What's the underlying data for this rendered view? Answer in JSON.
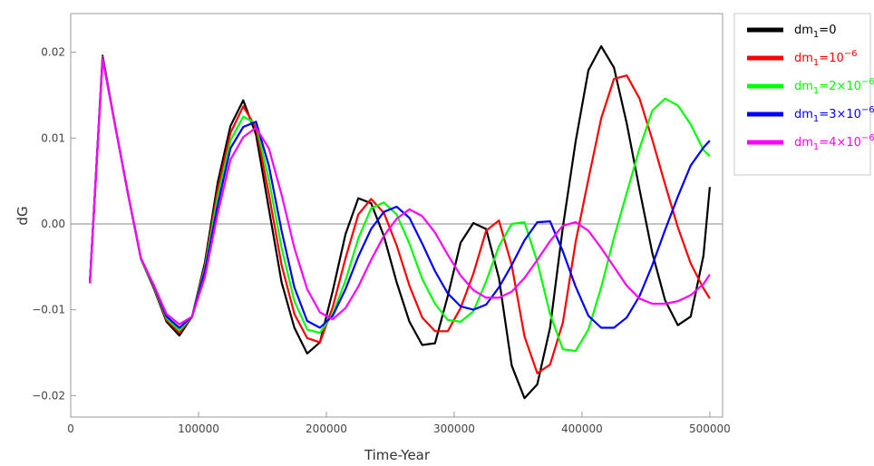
{
  "chart_data": {
    "type": "line",
    "xlabel": "Time-Year",
    "ylabel": "dG",
    "xlim": [
      0,
      510000
    ],
    "ylim": [
      -0.0225,
      0.0245
    ],
    "xticks": [
      0,
      100000,
      200000,
      300000,
      400000,
      500000
    ],
    "xtick_labels": [
      "0",
      "100000",
      "200000",
      "300000",
      "400000",
      "500000"
    ],
    "yticks": [
      -0.02,
      -0.01,
      0.0,
      0.01,
      0.02
    ],
    "ytick_labels": [
      "−0.02",
      "−0.01",
      "0.00",
      "0.01",
      "0.02"
    ],
    "reference_line_y": 0,
    "grid": false,
    "legend_position": "right",
    "series": [
      {
        "legend": {
          "base": "dm",
          "sub": "1",
          "rest": "=0",
          "sup": ""
        },
        "color": "#000000",
        "points": [
          [
            15000,
            -0.0069
          ],
          [
            25000,
            0.0196
          ],
          [
            35000,
            0.0113
          ],
          [
            45000,
            0.0034
          ],
          [
            55000,
            -0.0041
          ],
          [
            65000,
            -0.0075
          ],
          [
            75000,
            -0.0114
          ],
          [
            85000,
            -0.013
          ],
          [
            95000,
            -0.0108
          ],
          [
            105000,
            -0.0045
          ],
          [
            115000,
            0.0048
          ],
          [
            125000,
            0.0114
          ],
          [
            135000,
            0.0144
          ],
          [
            145000,
            0.0104
          ],
          [
            155000,
            0.0018
          ],
          [
            165000,
            -0.0068
          ],
          [
            175000,
            -0.0121
          ],
          [
            185000,
            -0.0151
          ],
          [
            195000,
            -0.0138
          ],
          [
            205000,
            -0.0078
          ],
          [
            215000,
            -0.0012
          ],
          [
            225000,
            0.003
          ],
          [
            235000,
            0.0024
          ],
          [
            245000,
            -0.0014
          ],
          [
            255000,
            -0.0068
          ],
          [
            265000,
            -0.0114
          ],
          [
            275000,
            -0.0141
          ],
          [
            285000,
            -0.0139
          ],
          [
            295000,
            -0.0084
          ],
          [
            305000,
            -0.0022
          ],
          [
            315000,
            0.0001
          ],
          [
            325000,
            -0.0006
          ],
          [
            335000,
            -0.0063
          ],
          [
            345000,
            -0.0165
          ],
          [
            355000,
            -0.0203
          ],
          [
            365000,
            -0.0187
          ],
          [
            375000,
            -0.0121
          ],
          [
            385000,
            -0.0004
          ],
          [
            395000,
            0.0096
          ],
          [
            405000,
            0.0179
          ],
          [
            415000,
            0.0207
          ],
          [
            425000,
            0.0182
          ],
          [
            435000,
            0.0117
          ],
          [
            445000,
            0.004
          ],
          [
            455000,
            -0.0034
          ],
          [
            465000,
            -0.0089
          ],
          [
            475000,
            -0.0118
          ],
          [
            485000,
            -0.0108
          ],
          [
            495000,
            -0.0037
          ],
          [
            500000,
            0.0043
          ]
        ]
      },
      {
        "legend": {
          "base": "dm",
          "sub": "1",
          "rest": "=10",
          "sup": "−6"
        },
        "color": "#ff0000",
        "points": [
          [
            15000,
            -0.0069
          ],
          [
            25000,
            0.0195
          ],
          [
            35000,
            0.0113
          ],
          [
            45000,
            0.0034
          ],
          [
            55000,
            -0.0041
          ],
          [
            65000,
            -0.0074
          ],
          [
            75000,
            -0.0112
          ],
          [
            85000,
            -0.0127
          ],
          [
            95000,
            -0.0108
          ],
          [
            105000,
            -0.0049
          ],
          [
            115000,
            0.004
          ],
          [
            125000,
            0.0106
          ],
          [
            135000,
            0.0137
          ],
          [
            145000,
            0.0112
          ],
          [
            155000,
            0.0035
          ],
          [
            165000,
            -0.0048
          ],
          [
            175000,
            -0.0105
          ],
          [
            185000,
            -0.0133
          ],
          [
            195000,
            -0.0138
          ],
          [
            205000,
            -0.0097
          ],
          [
            215000,
            -0.004
          ],
          [
            225000,
            0.0011
          ],
          [
            235000,
            0.0029
          ],
          [
            245000,
            0.0013
          ],
          [
            255000,
            -0.0025
          ],
          [
            265000,
            -0.0072
          ],
          [
            275000,
            -0.0109
          ],
          [
            285000,
            -0.0125
          ],
          [
            295000,
            -0.0125
          ],
          [
            305000,
            -0.0098
          ],
          [
            315000,
            -0.0058
          ],
          [
            325000,
            -0.0008
          ],
          [
            335000,
            0.0004
          ],
          [
            345000,
            -0.0048
          ],
          [
            355000,
            -0.0131
          ],
          [
            365000,
            -0.0174
          ],
          [
            375000,
            -0.0164
          ],
          [
            385000,
            -0.0115
          ],
          [
            395000,
            -0.0021
          ],
          [
            405000,
            0.0052
          ],
          [
            415000,
            0.0123
          ],
          [
            425000,
            0.0169
          ],
          [
            435000,
            0.0173
          ],
          [
            445000,
            0.0146
          ],
          [
            455000,
            0.0098
          ],
          [
            465000,
            0.0046
          ],
          [
            475000,
            -0.0004
          ],
          [
            485000,
            -0.0046
          ],
          [
            495000,
            -0.0075
          ],
          [
            500000,
            -0.0087
          ]
        ]
      },
      {
        "legend": {
          "base": "dm",
          "sub": "1",
          "rest": "=2×10",
          "sup": "−6"
        },
        "color": "#00ff00",
        "points": [
          [
            15000,
            -0.0069
          ],
          [
            25000,
            0.0194
          ],
          [
            35000,
            0.0113
          ],
          [
            45000,
            0.0034
          ],
          [
            55000,
            -0.0041
          ],
          [
            65000,
            -0.0073
          ],
          [
            75000,
            -0.011
          ],
          [
            85000,
            -0.0124
          ],
          [
            95000,
            -0.0108
          ],
          [
            105000,
            -0.0052
          ],
          [
            115000,
            0.0031
          ],
          [
            125000,
            0.0097
          ],
          [
            135000,
            0.0125
          ],
          [
            145000,
            0.0117
          ],
          [
            155000,
            0.0052
          ],
          [
            165000,
            -0.0028
          ],
          [
            175000,
            -0.009
          ],
          [
            185000,
            -0.0123
          ],
          [
            195000,
            -0.0127
          ],
          [
            205000,
            -0.0105
          ],
          [
            215000,
            -0.0066
          ],
          [
            225000,
            -0.0017
          ],
          [
            235000,
            0.0018
          ],
          [
            245000,
            0.0025
          ],
          [
            255000,
            0.0011
          ],
          [
            265000,
            -0.0023
          ],
          [
            275000,
            -0.0064
          ],
          [
            285000,
            -0.0093
          ],
          [
            295000,
            -0.0112
          ],
          [
            305000,
            -0.0114
          ],
          [
            315000,
            -0.0102
          ],
          [
            325000,
            -0.0067
          ],
          [
            335000,
            -0.0026
          ],
          [
            345000,
            0.0
          ],
          [
            355000,
            0.0002
          ],
          [
            365000,
            -0.0044
          ],
          [
            375000,
            -0.0105
          ],
          [
            385000,
            -0.0146
          ],
          [
            395000,
            -0.0148
          ],
          [
            405000,
            -0.0123
          ],
          [
            415000,
            -0.0074
          ],
          [
            425000,
            -0.0016
          ],
          [
            435000,
            0.0036
          ],
          [
            445000,
            0.0088
          ],
          [
            455000,
            0.0132
          ],
          [
            465000,
            0.0146
          ],
          [
            475000,
            0.0138
          ],
          [
            485000,
            0.0116
          ],
          [
            495000,
            0.0086
          ],
          [
            500000,
            0.0079
          ]
        ]
      },
      {
        "legend": {
          "base": "dm",
          "sub": "1",
          "rest": "=3×10",
          "sup": "−6"
        },
        "color": "#0000ff",
        "points": [
          [
            15000,
            -0.0069
          ],
          [
            25000,
            0.0193
          ],
          [
            35000,
            0.0113
          ],
          [
            45000,
            0.0034
          ],
          [
            55000,
            -0.004
          ],
          [
            65000,
            -0.0072
          ],
          [
            75000,
            -0.0108
          ],
          [
            85000,
            -0.0121
          ],
          [
            95000,
            -0.0108
          ],
          [
            105000,
            -0.0055
          ],
          [
            115000,
            0.0022
          ],
          [
            125000,
            0.0088
          ],
          [
            135000,
            0.0113
          ],
          [
            145000,
            0.0119
          ],
          [
            155000,
            0.0068
          ],
          [
            165000,
            -0.0008
          ],
          [
            175000,
            -0.0074
          ],
          [
            185000,
            -0.0113
          ],
          [
            195000,
            -0.0121
          ],
          [
            205000,
            -0.0107
          ],
          [
            215000,
            -0.0076
          ],
          [
            225000,
            -0.0038
          ],
          [
            235000,
            -0.0006
          ],
          [
            245000,
            0.0014
          ],
          [
            255000,
            0.002
          ],
          [
            265000,
            0.0007
          ],
          [
            275000,
            -0.0023
          ],
          [
            285000,
            -0.0055
          ],
          [
            295000,
            -0.0081
          ],
          [
            305000,
            -0.0096
          ],
          [
            315000,
            -0.01
          ],
          [
            325000,
            -0.0094
          ],
          [
            335000,
            -0.0074
          ],
          [
            345000,
            -0.0048
          ],
          [
            355000,
            -0.0019
          ],
          [
            365000,
            0.0002
          ],
          [
            375000,
            0.0003
          ],
          [
            385000,
            -0.0032
          ],
          [
            395000,
            -0.0073
          ],
          [
            405000,
            -0.0107
          ],
          [
            415000,
            -0.0121
          ],
          [
            425000,
            -0.0121
          ],
          [
            435000,
            -0.0109
          ],
          [
            445000,
            -0.0084
          ],
          [
            455000,
            -0.0048
          ],
          [
            465000,
            -0.0007
          ],
          [
            475000,
            0.0032
          ],
          [
            485000,
            0.0068
          ],
          [
            495000,
            0.0089
          ],
          [
            500000,
            0.0097
          ]
        ]
      },
      {
        "legend": {
          "base": "dm",
          "sub": "1",
          "rest": "=4×10",
          "sup": "−6"
        },
        "color": "#ff00ff",
        "points": [
          [
            15000,
            -0.0069
          ],
          [
            25000,
            0.0192
          ],
          [
            35000,
            0.0113
          ],
          [
            45000,
            0.0034
          ],
          [
            55000,
            -0.004
          ],
          [
            65000,
            -0.0071
          ],
          [
            75000,
            -0.0105
          ],
          [
            85000,
            -0.0117
          ],
          [
            95000,
            -0.0108
          ],
          [
            105000,
            -0.0062
          ],
          [
            115000,
            0.0012
          ],
          [
            125000,
            0.0075
          ],
          [
            135000,
            0.0101
          ],
          [
            145000,
            0.0112
          ],
          [
            155000,
            0.0088
          ],
          [
            165000,
            0.0034
          ],
          [
            175000,
            -0.0028
          ],
          [
            185000,
            -0.0076
          ],
          [
            195000,
            -0.0103
          ],
          [
            205000,
            -0.0111
          ],
          [
            215000,
            -0.0098
          ],
          [
            225000,
            -0.0073
          ],
          [
            235000,
            -0.0042
          ],
          [
            245000,
            -0.0014
          ],
          [
            255000,
            0.0006
          ],
          [
            265000,
            0.0017
          ],
          [
            275000,
            0.0009
          ],
          [
            285000,
            -0.001
          ],
          [
            295000,
            -0.0036
          ],
          [
            305000,
            -0.006
          ],
          [
            315000,
            -0.0077
          ],
          [
            325000,
            -0.0086
          ],
          [
            335000,
            -0.0086
          ],
          [
            345000,
            -0.0079
          ],
          [
            355000,
            -0.0063
          ],
          [
            365000,
            -0.0042
          ],
          [
            375000,
            -0.002
          ],
          [
            385000,
            -0.0002
          ],
          [
            395000,
            0.0002
          ],
          [
            405000,
            -0.0008
          ],
          [
            415000,
            -0.0028
          ],
          [
            425000,
            -0.005
          ],
          [
            435000,
            -0.0072
          ],
          [
            445000,
            -0.0087
          ],
          [
            455000,
            -0.0093
          ],
          [
            465000,
            -0.0093
          ],
          [
            475000,
            -0.009
          ],
          [
            485000,
            -0.0083
          ],
          [
            495000,
            -0.007
          ],
          [
            500000,
            -0.0059
          ]
        ]
      }
    ]
  }
}
